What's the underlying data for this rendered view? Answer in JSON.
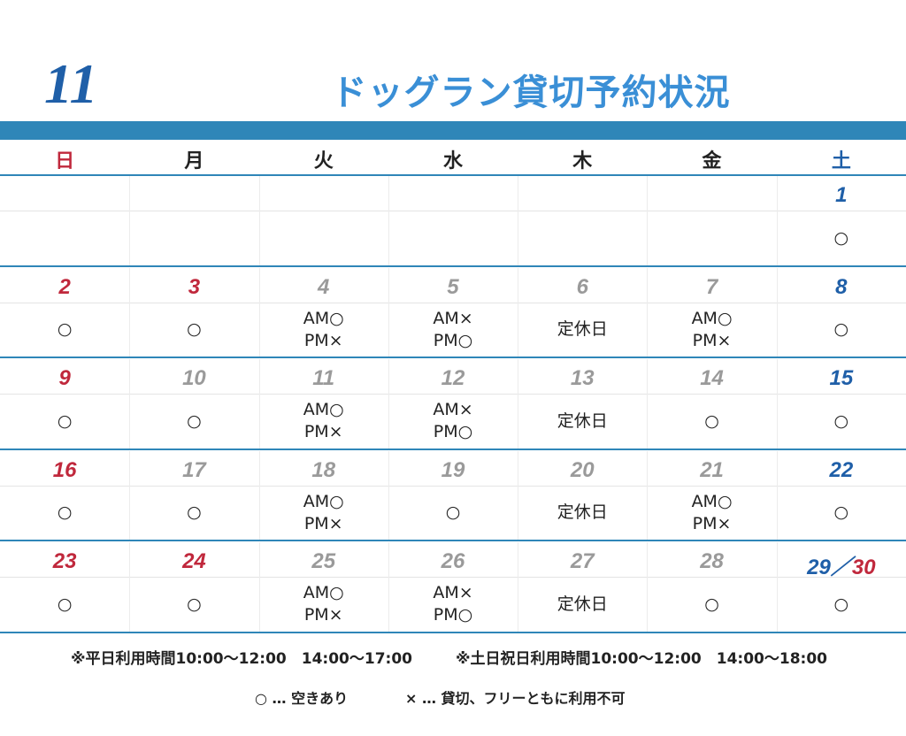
{
  "header": {
    "month": "11",
    "title": "ドッグラン貸切予約状況"
  },
  "colors": {
    "sunday": "#c0283c",
    "saturday": "#1f5fa8",
    "weekday": "#9a9a9a",
    "band": "#2f86b8",
    "title": "#3a8fd6"
  },
  "weekdays": [
    "日",
    "月",
    "火",
    "水",
    "木",
    "金",
    "土"
  ],
  "weeks": [
    {
      "days": [
        {
          "date": "1",
          "status": [
            "○"
          ]
        }
      ]
    },
    {
      "days": [
        {
          "date": "2",
          "status": [
            "○"
          ]
        },
        {
          "date": "3",
          "holiday": true,
          "status": [
            "○"
          ]
        },
        {
          "date": "4",
          "status": [
            "AM○",
            "PM×"
          ]
        },
        {
          "date": "5",
          "status": [
            "AM×",
            "PM○"
          ]
        },
        {
          "date": "6",
          "status": [
            "定休日"
          ]
        },
        {
          "date": "7",
          "status": [
            "AM○",
            "PM×"
          ]
        },
        {
          "date": "8",
          "status": [
            "○"
          ]
        }
      ]
    },
    {
      "days": [
        {
          "date": "9",
          "status": [
            "○"
          ]
        },
        {
          "date": "10",
          "status": [
            "○"
          ]
        },
        {
          "date": "11",
          "status": [
            "AM○",
            "PM×"
          ]
        },
        {
          "date": "12",
          "status": [
            "AM×",
            "PM○"
          ]
        },
        {
          "date": "13",
          "status": [
            "定休日"
          ]
        },
        {
          "date": "14",
          "status": [
            "○"
          ]
        },
        {
          "date": "15",
          "status": [
            "○"
          ]
        }
      ]
    },
    {
      "days": [
        {
          "date": "16",
          "status": [
            "○"
          ]
        },
        {
          "date": "17",
          "status": [
            "○"
          ]
        },
        {
          "date": "18",
          "status": [
            "AM○",
            "PM×"
          ]
        },
        {
          "date": "19",
          "status": [
            "○"
          ]
        },
        {
          "date": "20",
          "status": [
            "定休日"
          ]
        },
        {
          "date": "21",
          "status": [
            "AM○",
            "PM×"
          ]
        },
        {
          "date": "22",
          "status": [
            "○"
          ]
        }
      ]
    },
    {
      "days": [
        {
          "date": "23",
          "holiday": true,
          "status": [
            "○"
          ]
        },
        {
          "date": "24",
          "holiday": true,
          "status": [
            "○"
          ]
        },
        {
          "date": "25",
          "status": [
            "AM○",
            "PM×"
          ]
        },
        {
          "date": "26",
          "status": [
            "AM×",
            "PM○"
          ]
        },
        {
          "date": "27",
          "status": [
            "定休日"
          ]
        },
        {
          "date": "28",
          "status": [
            "○"
          ]
        },
        {
          "date": [
            {
              "text": "29",
              "color": "#1f5fa8"
            },
            {
              "text": "／",
              "color": "#1f5fa8"
            },
            {
              "text": "30",
              "color": "#c0283c"
            }
          ],
          "status": [
            "○"
          ]
        }
      ]
    }
  ],
  "notes": [
    "※平日利用時間10:00～12:00　14:00～17:00",
    "※土日祝日利用時間10:00～12:00　14:00～18:00"
  ],
  "legend": [
    "○ … 空きあり",
    "× … 貸切、フリーともに利用不可"
  ]
}
